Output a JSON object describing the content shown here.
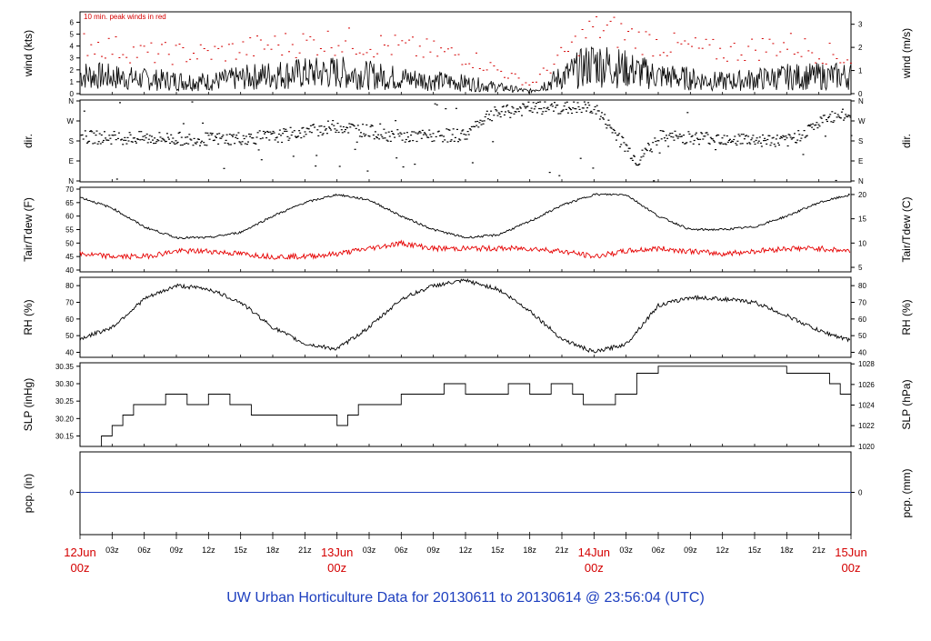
{
  "footer_title": "UW Urban Horticulture Data for 20130611  to  20130614 @ 23:56:04  (UTC)",
  "legend_note": "10 min. peak winds in red",
  "colors": {
    "line": "#000000",
    "peak": "#d40000",
    "dew": "#e60000",
    "precip": "#1d3fbf",
    "title": "#1d3fbf",
    "day": "#d40000"
  },
  "x_axis": {
    "day_labels": [
      {
        "day": "12Jun",
        "hour": "00z"
      },
      {
        "day": "13Jun",
        "hour": "00z"
      },
      {
        "day": "14Jun",
        "hour": "00z"
      },
      {
        "day": "15Jun",
        "hour": "00z"
      }
    ],
    "hour_labels": [
      "03z",
      "06z",
      "09z",
      "12z",
      "15z",
      "18z",
      "21z"
    ]
  },
  "chart_data": [
    {
      "type": "line",
      "ylabel_left": "wind (kts)",
      "ylabel_right": "wind (m/s)",
      "ylim": [
        0,
        6.8
      ],
      "yticks_left": [
        "0",
        "1",
        "2",
        "3",
        "4",
        "5",
        "6"
      ],
      "yticks_right": [
        "0",
        "1",
        "2",
        "3"
      ],
      "series": [
        {
          "name": "wind",
          "x_hours": [
            0,
            6,
            12,
            18,
            24,
            30,
            36,
            42,
            48,
            54,
            60,
            66,
            72
          ],
          "y": [
            1.6,
            1.2,
            1.0,
            1.6,
            1.8,
            1.3,
            0.9,
            0.2,
            2.6,
            1.5,
            1.0,
            1.4,
            1.5
          ]
        },
        {
          "name": "10 min. peak winds",
          "x_hours": [
            0,
            6,
            12,
            18,
            24,
            30,
            36,
            42,
            48,
            54,
            60,
            66,
            72
          ],
          "y": [
            4.5,
            3.5,
            3.5,
            4.2,
            4.6,
            4.0,
            3.3,
            0.8,
            5.8,
            4.3,
            3.6,
            4.3,
            3.0
          ]
        }
      ]
    },
    {
      "type": "scatter",
      "ylabel_left": "dir.",
      "ylabel_right": "dir.",
      "yticks": [
        "N",
        "E",
        "S",
        "W",
        "N"
      ],
      "series": [
        {
          "name": "direction",
          "x_hours": [
            0,
            6,
            12,
            18,
            24,
            30,
            36,
            38,
            42,
            48,
            52,
            54,
            60,
            66,
            70,
            72
          ],
          "y_deg": [
            200,
            195,
            190,
            200,
            250,
            200,
            210,
            300,
            330,
            330,
            90,
            200,
            195,
            180,
            290,
            300
          ]
        }
      ]
    },
    {
      "type": "line",
      "ylabel_left": "Tair/Tdew (F)",
      "ylabel_right": "Tair/Tdew (C)",
      "ylim": [
        40,
        70
      ],
      "yticks_left": [
        "40",
        "45",
        "50",
        "55",
        "60",
        "65",
        "70"
      ],
      "yticks_right": [
        "5",
        "10",
        "15",
        "20"
      ],
      "series": [
        {
          "name": "Tair",
          "x_hours": [
            0,
            3,
            6,
            9,
            12,
            15,
            18,
            21,
            24,
            27,
            30,
            33,
            36,
            39,
            42,
            45,
            48,
            51,
            54,
            57,
            60,
            63,
            66,
            69,
            72
          ],
          "y": [
            67,
            63,
            56,
            52,
            52,
            54,
            60,
            65,
            68,
            66,
            60,
            55,
            52,
            53,
            58,
            64,
            68,
            68,
            60,
            55,
            55,
            56,
            60,
            65,
            68
          ]
        },
        {
          "name": "Tdew",
          "x_hours": [
            0,
            3,
            6,
            9,
            12,
            15,
            18,
            21,
            24,
            27,
            30,
            33,
            36,
            39,
            42,
            45,
            48,
            51,
            54,
            57,
            60,
            63,
            66,
            69,
            72
          ],
          "y": [
            46,
            45,
            45,
            47,
            47,
            46,
            45,
            45,
            46,
            48,
            50,
            48,
            48,
            48,
            48,
            47,
            45,
            47,
            48,
            47,
            46,
            47,
            48,
            48,
            47
          ]
        }
      ]
    },
    {
      "type": "line",
      "ylabel_left": "RH (%)",
      "ylabel_right": "RH (%)",
      "ylim": [
        37,
        85
      ],
      "yticks_left": [
        "40",
        "50",
        "60",
        "70",
        "80"
      ],
      "yticks_right": [
        "40",
        "50",
        "60",
        "70",
        "80"
      ],
      "series": [
        {
          "name": "RH",
          "x_hours": [
            0,
            3,
            6,
            9,
            12,
            15,
            18,
            21,
            24,
            27,
            30,
            33,
            36,
            39,
            42,
            45,
            48,
            51,
            54,
            57,
            60,
            63,
            66,
            69,
            72
          ],
          "y": [
            48,
            55,
            72,
            80,
            78,
            70,
            55,
            45,
            42,
            55,
            72,
            80,
            83,
            78,
            65,
            48,
            40,
            45,
            68,
            73,
            72,
            70,
            62,
            53,
            47
          ]
        }
      ]
    },
    {
      "type": "line",
      "ylabel_left": "SLP (inHg)",
      "ylabel_right": "SLP (hPa)",
      "ylim": [
        30.12,
        30.36
      ],
      "yticks_left": [
        "30.15",
        "30.20",
        "30.25",
        "30.30",
        "30.35"
      ],
      "yticks_right": [
        "1020",
        "1022",
        "1024",
        "1026",
        "1028"
      ],
      "series": [
        {
          "name": "SLP",
          "x_hours": [
            0,
            2,
            3,
            4,
            5,
            6,
            8,
            10,
            12,
            14,
            16,
            18,
            20,
            22,
            24,
            25,
            26,
            28,
            30,
            32,
            34,
            36,
            38,
            40,
            42,
            44,
            46,
            47,
            48,
            50,
            52,
            54,
            56,
            58,
            60,
            62,
            64,
            66,
            68,
            70,
            71,
            72
          ],
          "y": [
            30.12,
            30.15,
            30.18,
            30.21,
            30.24,
            30.24,
            30.27,
            30.24,
            30.27,
            30.24,
            30.21,
            30.21,
            30.21,
            30.21,
            30.18,
            30.21,
            30.24,
            30.24,
            30.27,
            30.27,
            30.3,
            30.27,
            30.27,
            30.3,
            30.27,
            30.3,
            30.27,
            30.24,
            30.24,
            30.27,
            30.33,
            30.35,
            30.35,
            30.35,
            30.35,
            30.35,
            30.35,
            30.33,
            30.33,
            30.3,
            30.27,
            30.24
          ]
        }
      ]
    },
    {
      "type": "line",
      "ylabel_left": "pcp. (in)",
      "ylabel_right": "pcp. (mm)",
      "yticks_left": [
        "0"
      ],
      "yticks_right": [
        "0"
      ],
      "series": [
        {
          "name": "precip",
          "x_hours": [
            0,
            72
          ],
          "y": [
            0,
            0
          ]
        }
      ]
    }
  ]
}
